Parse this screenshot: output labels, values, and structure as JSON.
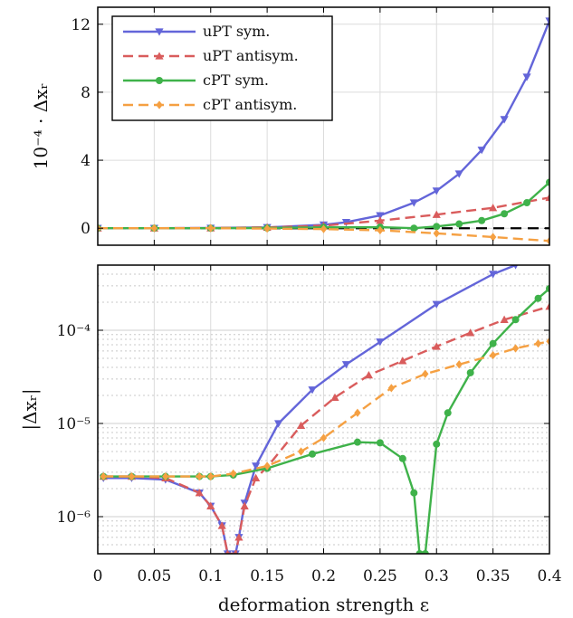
{
  "chart_data": [
    {
      "type": "line",
      "ylabel": "10⁻⁴ · Δxᵣ",
      "xlim": [
        0,
        0.4
      ],
      "ylim": [
        -1,
        13
      ],
      "yticks": [
        0,
        4,
        8,
        12
      ],
      "grid": true,
      "legend": {
        "placement": "top-left",
        "entries": [
          "uPT sym.",
          "uPT antisym.",
          "cPT sym.",
          "cPT antisym."
        ]
      },
      "reference_line": {
        "y": 0,
        "style": "dashed",
        "color": "#000000"
      },
      "series": [
        {
          "name": "uPT sym.",
          "color": "#6365d9",
          "style": "solid",
          "marker": "triangle-down",
          "x": [
            0,
            0.05,
            0.1,
            0.15,
            0.2,
            0.22,
            0.25,
            0.28,
            0.3,
            0.32,
            0.34,
            0.36,
            0.38,
            0.4
          ],
          "y": [
            0,
            0,
            0.01,
            0.05,
            0.2,
            0.35,
            0.75,
            1.5,
            2.2,
            3.2,
            4.6,
            6.4,
            8.9,
            12.2
          ]
        },
        {
          "name": "uPT antisym.",
          "color": "#d95c5c",
          "style": "dashed",
          "marker": "triangle-up",
          "x": [
            0,
            0.05,
            0.1,
            0.15,
            0.2,
            0.25,
            0.3,
            0.35,
            0.4
          ],
          "y": [
            0,
            0,
            0.01,
            0.05,
            0.15,
            0.45,
            0.8,
            1.2,
            1.8
          ]
        },
        {
          "name": "cPT sym.",
          "color": "#3fb24a",
          "style": "solid",
          "marker": "circle",
          "x": [
            0,
            0.05,
            0.1,
            0.15,
            0.2,
            0.25,
            0.28,
            0.3,
            0.32,
            0.34,
            0.36,
            0.38,
            0.4
          ],
          "y": [
            0,
            0,
            0,
            0.01,
            0.05,
            0.06,
            0,
            0.1,
            0.25,
            0.45,
            0.85,
            1.5,
            2.7
          ]
        },
        {
          "name": "cPT antisym.",
          "color": "#f5a042",
          "style": "dashed",
          "marker": "diamond",
          "x": [
            0,
            0.05,
            0.1,
            0.15,
            0.2,
            0.25,
            0.3,
            0.35,
            0.4
          ],
          "y": [
            0,
            0,
            0,
            -0.02,
            -0.05,
            -0.12,
            -0.3,
            -0.52,
            -0.75
          ]
        }
      ]
    },
    {
      "type": "line",
      "ylabel": "|Δxᵣ|",
      "xlabel": "deformation strength ε",
      "xlim": [
        0,
        0.4
      ],
      "xticks": [
        0,
        0.05,
        0.1,
        0.15,
        0.2,
        0.25,
        0.3,
        0.35,
        0.4
      ],
      "xticklabels": [
        "0",
        "0.05",
        "0.1",
        "0.15",
        "0.2",
        "0.25",
        "0.3",
        "0.35",
        "0.4"
      ],
      "yscale": "log",
      "ylim": [
        4e-07,
        0.0005
      ],
      "yticklabels": [
        "10⁻⁶",
        "10⁻⁵",
        "10⁻⁴"
      ],
      "grid": true,
      "series": [
        {
          "name": "uPT sym.",
          "color": "#6365d9",
          "style": "solid",
          "marker": "triangle-down",
          "x": [
            0.005,
            0.03,
            0.06,
            0.09,
            0.1,
            0.11,
            0.115,
            0.122,
            0.125,
            0.13,
            0.14,
            0.16,
            0.19,
            0.22,
            0.25,
            0.3,
            0.35,
            0.37
          ],
          "y": [
            2.6e-06,
            2.6e-06,
            2.5e-06,
            1.8e-06,
            1.3e-06,
            8e-07,
            4e-07,
            4e-07,
            6e-07,
            1.4e-06,
            3.5e-06,
            1e-05,
            2.3e-05,
            4.3e-05,
            7.5e-05,
            0.00019,
            0.0004,
            0.0005
          ]
        },
        {
          "name": "uPT antisym.",
          "color": "#d95c5c",
          "style": "dashed",
          "marker": "triangle-up",
          "x": [
            0.005,
            0.03,
            0.06,
            0.09,
            0.1,
            0.11,
            0.115,
            0.122,
            0.125,
            0.13,
            0.14,
            0.15,
            0.18,
            0.21,
            0.24,
            0.27,
            0.3,
            0.33,
            0.36,
            0.4
          ],
          "y": [
            2.7e-06,
            2.7e-06,
            2.6e-06,
            1.8e-06,
            1.3e-06,
            8e-07,
            4e-07,
            4e-07,
            6e-07,
            1.3e-06,
            2.6e-06,
            3.4e-06,
            9.5e-06,
            1.9e-05,
            3.3e-05,
            4.7e-05,
            6.7e-05,
            9.4e-05,
            0.00013,
            0.00018
          ]
        },
        {
          "name": "cPT sym.",
          "color": "#3fb24a",
          "style": "solid",
          "marker": "circle",
          "x": [
            0.005,
            0.03,
            0.06,
            0.09,
            0.1,
            0.12,
            0.15,
            0.19,
            0.23,
            0.25,
            0.27,
            0.28,
            0.285,
            0.29,
            0.3,
            0.31,
            0.33,
            0.35,
            0.37,
            0.39,
            0.4
          ],
          "y": [
            2.7e-06,
            2.7e-06,
            2.7e-06,
            2.7e-06,
            2.7e-06,
            2.8e-06,
            3.3e-06,
            4.7e-06,
            6.3e-06,
            6.2e-06,
            4.2e-06,
            1.8e-06,
            4e-07,
            4e-07,
            6e-06,
            1.3e-05,
            3.5e-05,
            7.2e-05,
            0.00013,
            0.00022,
            0.00028
          ]
        },
        {
          "name": "cPT antisym.",
          "color": "#f5a042",
          "style": "dashed",
          "marker": "diamond",
          "x": [
            0.005,
            0.03,
            0.06,
            0.09,
            0.1,
            0.12,
            0.15,
            0.18,
            0.2,
            0.23,
            0.26,
            0.29,
            0.32,
            0.35,
            0.37,
            0.39,
            0.4
          ],
          "y": [
            2.7e-06,
            2.7e-06,
            2.7e-06,
            2.7e-06,
            2.7e-06,
            2.9e-06,
            3.5e-06,
            5e-06,
            7e-06,
            1.3e-05,
            2.4e-05,
            3.4e-05,
            4.3e-05,
            5.4e-05,
            6.4e-05,
            7.2e-05,
            7.6e-05
          ]
        }
      ]
    }
  ]
}
